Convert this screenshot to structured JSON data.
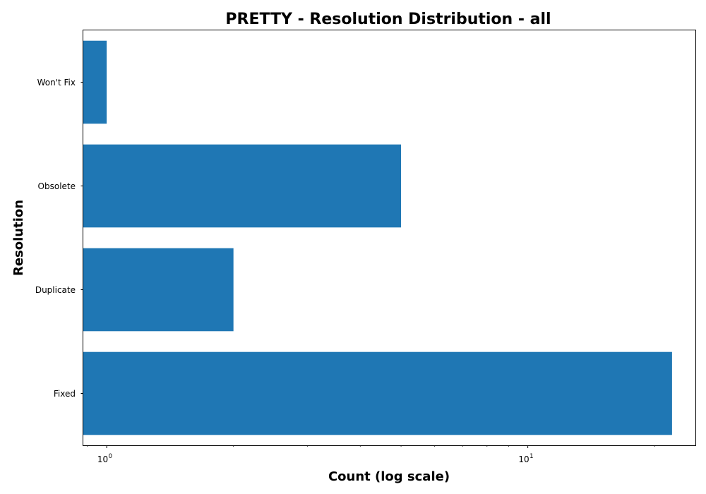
{
  "chart_data": {
    "type": "bar",
    "orientation": "horizontal",
    "title": "PRETTY - Resolution Distribution - all",
    "xlabel": "Count (log scale)",
    "ylabel": "Resolution",
    "x_scale": "log",
    "xlim": [
      0.88,
      25
    ],
    "categories": [
      "Fixed",
      "Duplicate",
      "Obsolete",
      "Won't Fix"
    ],
    "values": [
      22,
      2,
      5,
      1
    ],
    "x_major_ticks": [
      {
        "value": 1,
        "base": "10",
        "exponent": "0"
      },
      {
        "value": 10,
        "base": "10",
        "exponent": "1"
      }
    ],
    "x_minor_ticks": [
      0.9,
      2,
      3,
      4,
      5,
      6,
      7,
      8,
      9,
      20
    ],
    "grid": false,
    "legend": "none",
    "bar_color": "#1f77b4"
  }
}
